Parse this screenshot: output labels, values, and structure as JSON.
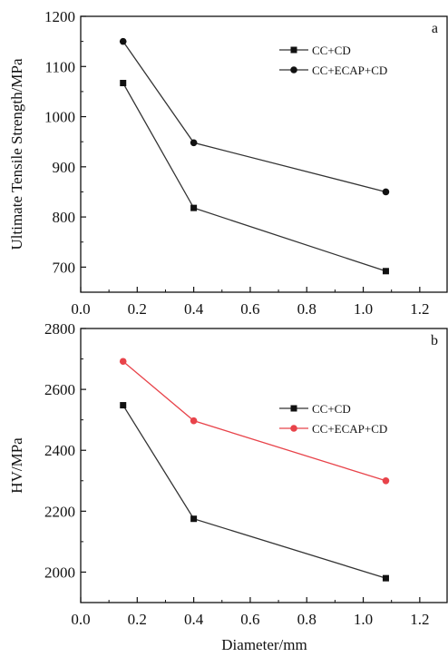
{
  "chart_data": [
    {
      "type": "line",
      "panel_label": "a",
      "xlabel": "",
      "ylabel": "Ultimate Tensile Strength/MPa",
      "xlim": [
        0.0,
        1.3
      ],
      "ylim": [
        650,
        1200
      ],
      "xticks": [
        0.0,
        0.2,
        0.4,
        0.6,
        0.8,
        1.0,
        1.2
      ],
      "xtick_labels": [
        "0.0",
        "0.2",
        "0.4",
        "0.6",
        "0.8",
        "1.0",
        "1.2"
      ],
      "yticks": [
        700,
        800,
        900,
        1000,
        1100,
        1200
      ],
      "ytick_labels": [
        "700",
        "800",
        "900",
        "1000",
        "1100",
        "1200"
      ],
      "legend_position": "top-right",
      "series": [
        {
          "name": "CC+CD",
          "marker": "square",
          "color": "#333333",
          "x": [
            0.15,
            0.4,
            1.08
          ],
          "y": [
            1067,
            818,
            692
          ]
        },
        {
          "name": "CC+ECAP+CD",
          "marker": "circle",
          "color": "#333333",
          "x": [
            0.15,
            0.4,
            1.08
          ],
          "y": [
            1150,
            948,
            850
          ]
        }
      ]
    },
    {
      "type": "line",
      "panel_label": "b",
      "xlabel": "Diameter/mm",
      "ylabel": "HV/MPa",
      "xlim": [
        0.0,
        1.3
      ],
      "ylim": [
        1900,
        2800
      ],
      "xticks": [
        0.0,
        0.2,
        0.4,
        0.6,
        0.8,
        1.0,
        1.2
      ],
      "xtick_labels": [
        "0.0",
        "0.2",
        "0.4",
        "0.6",
        "0.8",
        "1.0",
        "1.2"
      ],
      "yticks": [
        2000,
        2200,
        2400,
        2600,
        2800
      ],
      "ytick_labels": [
        "2000",
        "2200",
        "2400",
        "2600",
        "2800"
      ],
      "legend_position": "top-right",
      "series": [
        {
          "name": "CC+CD",
          "marker": "square",
          "color": "#333333",
          "x": [
            0.15,
            0.4,
            1.08
          ],
          "y": [
            2548,
            2175,
            1980
          ]
        },
        {
          "name": "CC+ECAP+CD",
          "marker": "circle",
          "color": "#e8434a",
          "x": [
            0.15,
            0.4,
            1.08
          ],
          "y": [
            2692,
            2497,
            2300
          ]
        }
      ]
    }
  ]
}
